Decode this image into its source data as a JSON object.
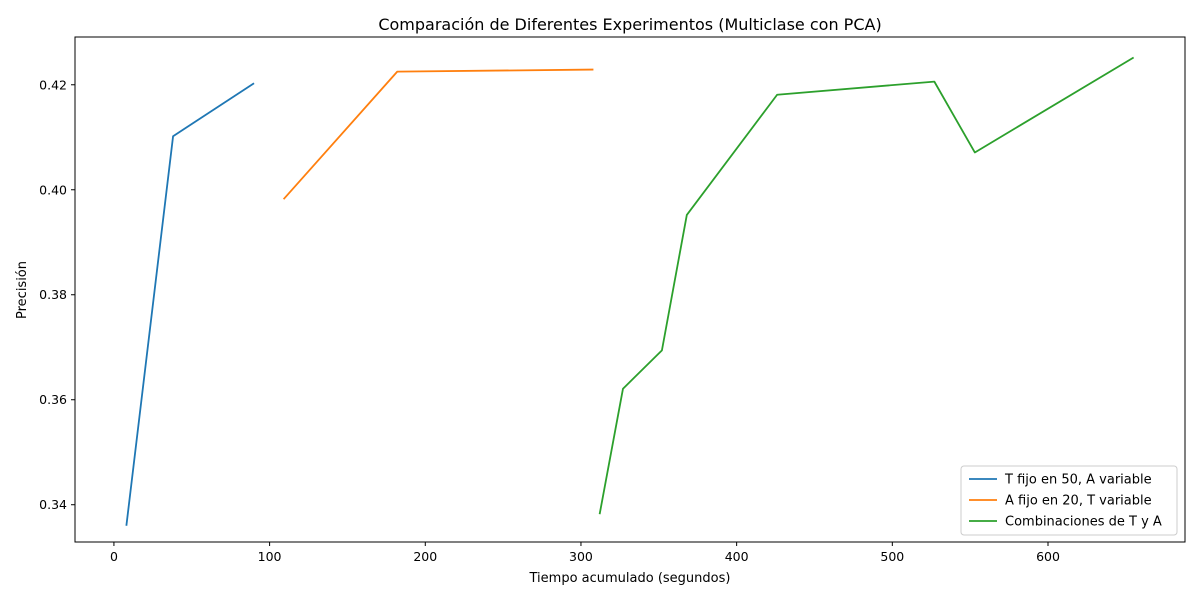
{
  "chart_data": {
    "type": "line",
    "title": "Comparación de Diferentes Experimentos (Multiclase con PCA)",
    "xlabel": "Tiempo acumulado (segundos)",
    "ylabel": "Precisión",
    "xlim": [
      -25,
      688
    ],
    "ylim": [
      0.3329,
      0.4291
    ],
    "xticks": [
      0,
      100,
      200,
      300,
      400,
      500,
      600
    ],
    "xtick_labels": [
      "0",
      "100",
      "200",
      "300",
      "400",
      "500",
      "600"
    ],
    "yticks": [
      0.34,
      0.36,
      0.38,
      0.4,
      0.42
    ],
    "ytick_labels": [
      "0.34",
      "0.36",
      "0.38",
      "0.40",
      "0.42"
    ],
    "grid": false,
    "legend_position": "bottom-right",
    "series": [
      {
        "name": "T fijo en 50, A variable",
        "color": "#1f77b4",
        "points": [
          [
            8,
            0.336
          ],
          [
            38,
            0.4102
          ],
          [
            90,
            0.4203
          ]
        ]
      },
      {
        "name": "A fijo en 20, T variable",
        "color": "#ff7f0e",
        "points": [
          [
            109,
            0.3982
          ],
          [
            182,
            0.4225
          ],
          [
            308,
            0.4229
          ]
        ]
      },
      {
        "name": "Combinaciones de T y A",
        "color": "#2ca02c",
        "points": [
          [
            312,
            0.3382
          ],
          [
            327,
            0.3621
          ],
          [
            352,
            0.3694
          ],
          [
            368,
            0.3952
          ],
          [
            426,
            0.4181
          ],
          [
            527,
            0.4206
          ],
          [
            553,
            0.4071
          ],
          [
            655,
            0.4252
          ]
        ]
      }
    ]
  }
}
